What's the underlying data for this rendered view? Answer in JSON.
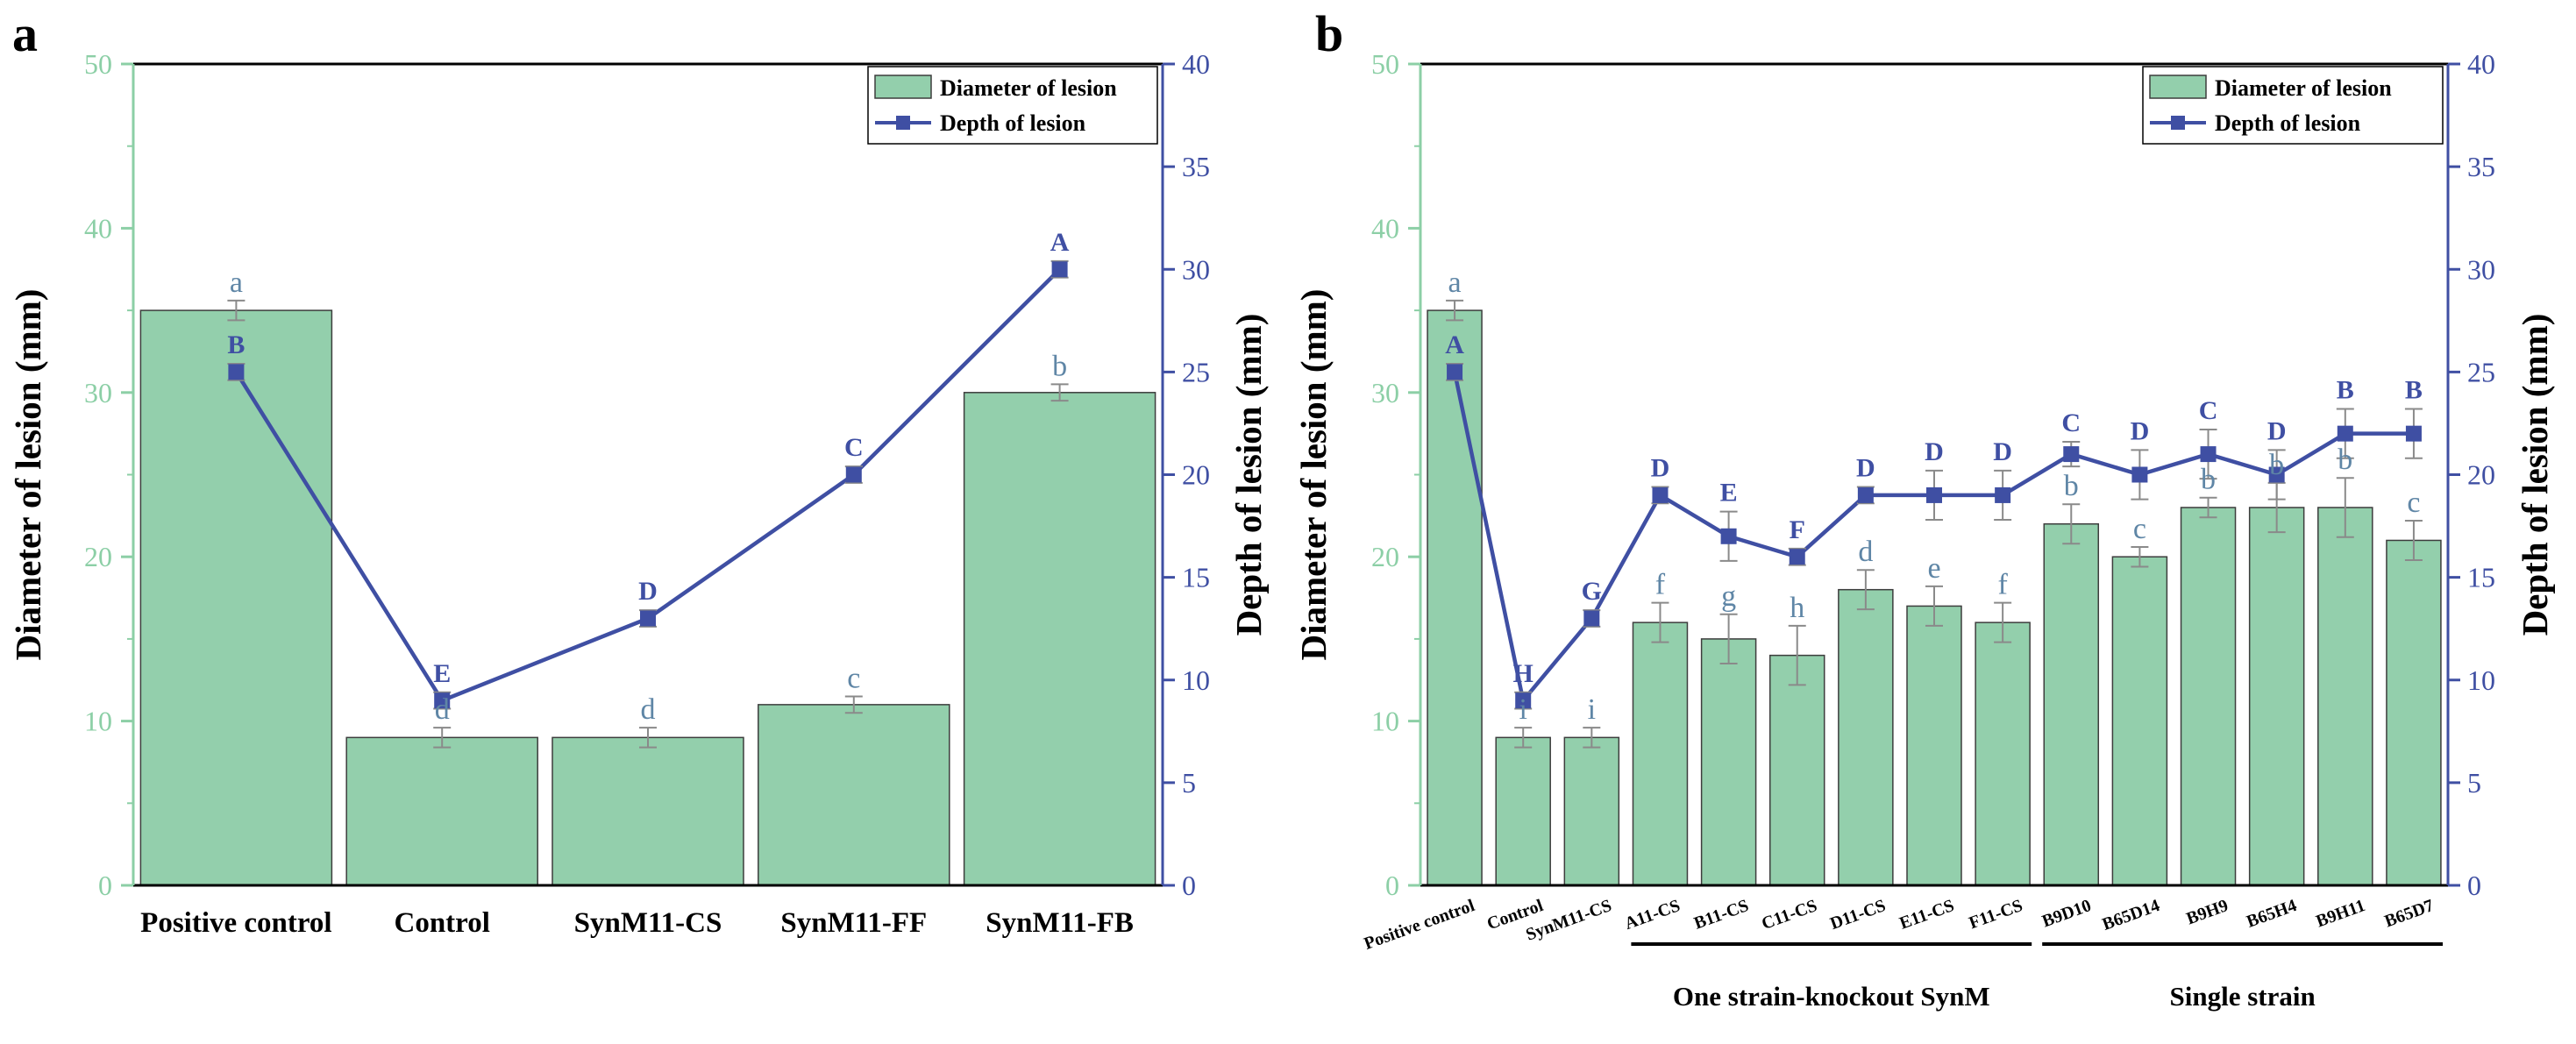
{
  "chart_data": [
    {
      "panel": "a",
      "type": "bar+line",
      "categories": [
        "Positive control",
        "Control",
        "SynM11-CS",
        "SynM11-FF",
        "SynM11-FB"
      ],
      "series": [
        {
          "name": "Diameter of lesion",
          "type": "bar",
          "axis": "left",
          "values": [
            35,
            9,
            9,
            11,
            30
          ],
          "errors": [
            0.6,
            0.6,
            0.6,
            0.5,
            0.5
          ],
          "letters": [
            "a",
            "d",
            "d",
            "c",
            "b"
          ]
        },
        {
          "name": "Depth of lesion",
          "type": "line",
          "axis": "right",
          "values": [
            25,
            9,
            13,
            20,
            30
          ],
          "errors": [
            0.4,
            0.4,
            0.4,
            0.4,
            0.4
          ],
          "letters": [
            "B",
            "E",
            "D",
            "C",
            "A"
          ]
        }
      ],
      "ylabel": "Diameter of lesion (mm)",
      "y2label": "Depth of lesion (mm)",
      "ylim": [
        0,
        50
      ],
      "y2lim": [
        0,
        40
      ],
      "yticks": [
        0,
        10,
        20,
        30,
        40,
        50
      ],
      "y2ticks": [
        0,
        5,
        10,
        15,
        20,
        25,
        30,
        35,
        40
      ],
      "legend_position": "top-right",
      "groups": []
    },
    {
      "panel": "b",
      "type": "bar+line",
      "categories": [
        "Positive control",
        "Control",
        "SynM11-CS",
        "A11-CS",
        "B11-CS",
        "C11-CS",
        "D11-CS",
        "E11-CS",
        "F11-CS",
        "B9D10",
        "B65D14",
        "B9H9",
        "B65H4",
        "B9H11",
        "B65D7"
      ],
      "series": [
        {
          "name": "Diameter of lesion",
          "type": "bar",
          "axis": "left",
          "values": [
            35,
            9,
            9,
            16,
            15,
            14,
            18,
            17,
            16,
            22,
            20,
            23,
            23,
            23,
            21
          ],
          "errors": [
            0.6,
            0.6,
            0.6,
            1.2,
            1.5,
            1.8,
            1.2,
            1.2,
            1.2,
            1.2,
            0.6,
            0.6,
            1.5,
            1.8,
            1.2
          ],
          "letters": [
            "a",
            "i",
            "i",
            "f",
            "g",
            "h",
            "d",
            "e",
            "f",
            "b",
            "c",
            "b",
            "b",
            "b",
            "c"
          ]
        },
        {
          "name": "Depth of lesion",
          "type": "line",
          "axis": "right",
          "values": [
            25,
            9,
            13,
            19,
            17,
            16,
            19,
            19,
            19,
            21,
            20,
            21,
            20,
            22,
            22
          ],
          "errors": [
            0.4,
            0.4,
            0.4,
            0.4,
            1.2,
            0.4,
            0.4,
            1.2,
            1.2,
            0.6,
            1.2,
            1.2,
            1.2,
            1.2,
            1.2
          ],
          "letters": [
            "A",
            "H",
            "G",
            "D",
            "E",
            "F",
            "D",
            "D",
            "D",
            "C",
            "D",
            "C",
            "D",
            "B",
            "B"
          ]
        }
      ],
      "ylabel": "Diameter of lesion (mm)",
      "y2label": "Depth of lesion (mm)",
      "ylim": [
        0,
        50
      ],
      "y2lim": [
        0,
        40
      ],
      "yticks": [
        0,
        10,
        20,
        30,
        40,
        50
      ],
      "y2ticks": [
        0,
        5,
        10,
        15,
        20,
        25,
        30,
        35,
        40
      ],
      "legend_position": "top-right",
      "groups": [
        {
          "label": "One strain-knockout SynM",
          "from": 3,
          "to": 8
        },
        {
          "label": "Single strain",
          "from": 9,
          "to": 14
        }
      ]
    }
  ],
  "colors": {
    "bar_fill": "#93cfac",
    "bar_stroke": "#3d3d3d",
    "line": "#3f4fa3",
    "left_axis": "#8ccfa6",
    "right_axis": "#3f4fa3",
    "error_bar": "#8a8a8a",
    "letter_green": "#5f86a6"
  }
}
